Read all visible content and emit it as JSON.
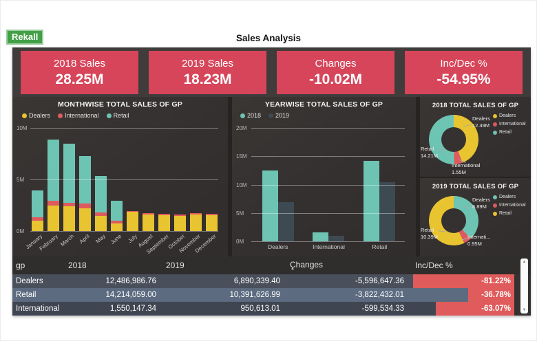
{
  "header": {
    "logo_text": "Rekall",
    "title": "Sales Analysis"
  },
  "kpi_cards": [
    {
      "label": "2018 Sales",
      "value": "28.25M"
    },
    {
      "label": "2019 Sales",
      "value": "18.23M"
    },
    {
      "label": "Changes",
      "value": "-10.02M"
    },
    {
      "label": "Inc/Dec %",
      "value": "-54.95%"
    }
  ],
  "colors": {
    "kpi_card_bg": "#d6455a",
    "dealers_yellow": "#e9c431",
    "international_red": "#dd5b5e",
    "retail_teal": "#6ec4b3",
    "year2019_gray": "#3e4a52",
    "logo_green": "#43a047"
  },
  "chart_data": [
    {
      "type": "bar",
      "stacked": true,
      "title": "MONTHWISE TOTAL SALES OF GP",
      "categories": [
        "January",
        "February",
        "March",
        "April",
        "May",
        "June",
        "July",
        "August",
        "September",
        "October",
        "November",
        "December"
      ],
      "series": [
        {
          "name": "Dealers",
          "color": "#e9c431",
          "values": [
            1.0,
            2.45,
            2.4,
            2.2,
            1.5,
            0.75,
            1.85,
            1.6,
            1.55,
            1.5,
            1.6,
            1.55
          ]
        },
        {
          "name": "International",
          "color": "#dd5b5e",
          "values": [
            0.35,
            0.5,
            0.35,
            0.45,
            0.3,
            0.25,
            0.1,
            0.12,
            0.1,
            0.1,
            0.12,
            0.12
          ]
        },
        {
          "name": "Retail",
          "color": "#6ec4b3",
          "values": [
            2.6,
            5.9,
            5.7,
            4.6,
            3.55,
            1.9,
            0,
            0,
            0,
            0,
            0,
            0
          ]
        }
      ],
      "ylim": [
        0,
        10
      ],
      "y_ticks": [
        "10M",
        "5M",
        "0M"
      ],
      "legend_position": "top-left",
      "grid": true
    },
    {
      "type": "bar",
      "stacked": false,
      "title": "YEARWISE TOTAL SALES OF GP",
      "categories": [
        "Dealers",
        "International",
        "Retail"
      ],
      "series": [
        {
          "name": "2018",
          "color": "#6ec4b3",
          "values": [
            12.49,
            1.55,
            14.21
          ]
        },
        {
          "name": "2019",
          "color": "#3e4a52",
          "values": [
            6.89,
            0.95,
            10.39
          ]
        }
      ],
      "ylim": [
        0,
        20
      ],
      "y_ticks": [
        "20M",
        "15M",
        "10M",
        "5M",
        "0M"
      ],
      "legend_position": "top-left",
      "grid": true
    },
    {
      "type": "pie",
      "title": "2018 TOTAL SALES OF GP",
      "slices": [
        {
          "name": "Dealers",
          "value": 12.49,
          "label": "12.49M",
          "color": "#e9c431",
          "callout": "tr",
          "callout_name": "Dealers"
        },
        {
          "name": "International",
          "value": 1.55,
          "label": "1.55M",
          "color": "#dd5b5e",
          "callout": "b",
          "callout_name": "International"
        },
        {
          "name": "Retail",
          "value": 14.21,
          "label": "14.21M",
          "color": "#6ec4b3",
          "callout": "l",
          "callout_name": "Retail"
        }
      ]
    },
    {
      "type": "pie",
      "title": "2019 TOTAL SALES OF GP",
      "slices": [
        {
          "name": "Dealers",
          "value": 6.89,
          "label": "6.89M",
          "color": "#6ec4b3",
          "callout": "tr",
          "callout_name": "Dealers"
        },
        {
          "name": "International",
          "value": 0.95,
          "label": "0.95M",
          "color": "#dd5b5e",
          "callout": "br",
          "callout_name": "Internati..."
        },
        {
          "name": "Retail",
          "value": 10.39,
          "label": "10.39M",
          "color": "#e9c431",
          "callout": "l",
          "callout_name": "Retail"
        }
      ]
    }
  ],
  "table": {
    "columns": [
      "gp",
      "2018",
      "2019",
      "Changes",
      "Inc/Dec %"
    ],
    "sort_column": "Changes",
    "sort_indicator": "▲",
    "rows": [
      {
        "gp": "Dealers",
        "y2018": "12,486,986.76",
        "y2019": "6,890,339.40",
        "changes": "-5,596,647.36",
        "incdec": "-81.22%"
      },
      {
        "gp": "Retail",
        "y2018": "14,214,059.00",
        "y2019": "10,391,626.99",
        "changes": "-3,822,432.01",
        "incdec": "-36.78%"
      },
      {
        "gp": "International",
        "y2018": "1,550,147.34",
        "y2019": "950,613.01",
        "changes": "-599,534.33",
        "incdec": "-63.07%"
      }
    ],
    "row_colors": [
      "#49505c",
      "#5d6b80",
      "#3f4551"
    ],
    "bar_color": "#e05c5c",
    "scrollbar": {
      "up": "▲",
      "down": "▼"
    }
  }
}
